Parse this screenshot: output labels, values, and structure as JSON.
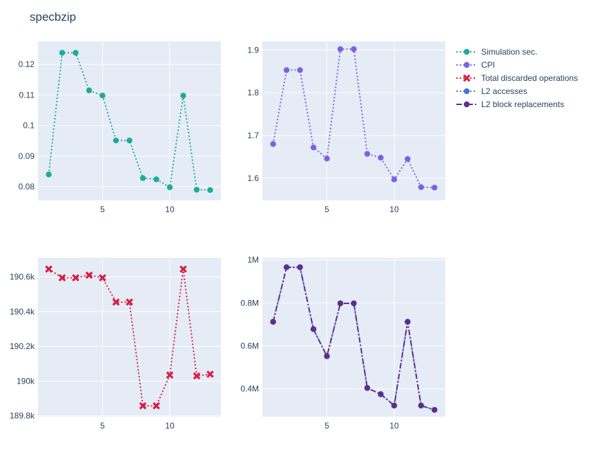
{
  "chart_data": {
    "type": "line",
    "title": "specbzip",
    "x": [
      1,
      2,
      3,
      4,
      5,
      6,
      7,
      8,
      9,
      10,
      11,
      12,
      13
    ],
    "subplots": [
      {
        "series": [
          {
            "name": "Simulation sec.",
            "color": "#20aa9c",
            "dash": "dot",
            "marker": "circle",
            "values": [
              0.084,
              0.1238,
              0.1238,
              0.1115,
              0.1098,
              0.0951,
              0.0951,
              0.0828,
              0.0824,
              0.0798,
              0.1098,
              0.079,
              0.0789
            ]
          }
        ],
        "xlim": [
          0.2,
          13.8
        ],
        "ylim": [
          0.0755,
          0.1275
        ],
        "xticks": [
          5,
          10
        ],
        "xtick_labels": [
          "5",
          "10"
        ],
        "yticks": [
          0.08,
          0.09,
          0.1,
          0.11,
          0.12
        ],
        "ytick_labels": [
          "0.08",
          "0.09",
          "0.1",
          "0.11",
          "0.12"
        ]
      },
      {
        "series": [
          {
            "name": "CPI",
            "color": "#7b62e0",
            "dash": "dot",
            "marker": "circle",
            "values": [
              1.68,
              1.853,
              1.853,
              1.672,
              1.646,
              1.902,
              1.902,
              1.657,
              1.648,
              1.597,
              1.645,
              1.579,
              1.578
            ]
          }
        ],
        "xlim": [
          0.2,
          13.8
        ],
        "ylim": [
          1.548,
          1.92
        ],
        "xticks": [
          5,
          10
        ],
        "xtick_labels": [
          "5",
          "10"
        ],
        "yticks": [
          1.6,
          1.7,
          1.8,
          1.9
        ],
        "ytick_labels": [
          "1.6",
          "1.7",
          "1.8",
          "1.9"
        ]
      },
      {
        "series": [
          {
            "name": "Total discarded operations",
            "color": "#d81e44",
            "dash": "dot",
            "marker": "x",
            "values": [
              190645,
              190595,
              190595,
              190610,
              190595,
              190455,
              190455,
              189858,
              189858,
              190035,
              190645,
              190030,
              190040
            ]
          }
        ],
        "xlim": [
          0.2,
          13.8
        ],
        "ylim": [
          189795,
          190710
        ],
        "xticks": [
          5,
          10
        ],
        "xtick_labels": [
          "5",
          "10"
        ],
        "yticks": [
          189800,
          190000,
          190200,
          190400,
          190600
        ],
        "ytick_labels": [
          "189.8k",
          "190k",
          "190.2k",
          "190.4k",
          "190.6k"
        ]
      },
      {
        "series": [
          {
            "name": "L2 accesses",
            "color": "#4a72d4",
            "dash": "dot",
            "marker": "circle",
            "values": [
              712000,
              966000,
              966000,
              678000,
              552000,
              798000,
              798000,
              404000,
              375000,
              322000,
              712000,
              322000,
              302000
            ]
          },
          {
            "name": "L2 block replacements",
            "color": "#5e2e8c",
            "dash": "dashdot",
            "marker": "circle",
            "values": [
              712000,
              966000,
              966000,
              678000,
              552000,
              798000,
              798000,
              404000,
              375000,
              322000,
              712000,
              322000,
              302000
            ]
          }
        ],
        "xlim": [
          0.2,
          13.8
        ],
        "ylim": [
          270000,
          1010000
        ],
        "xticks": [
          5,
          10
        ],
        "xtick_labels": [
          "5",
          "10"
        ],
        "yticks": [
          400000,
          600000,
          800000,
          1000000
        ],
        "ytick_labels": [
          "0.4M",
          "0.6M",
          "0.8M",
          "1M"
        ]
      }
    ],
    "legend": {
      "position": "top-right",
      "entries": [
        {
          "name": "Simulation sec.",
          "color": "#20aa9c",
          "dash": "dot",
          "marker": "circle"
        },
        {
          "name": "CPI",
          "color": "#7b62e0",
          "dash": "dot",
          "marker": "circle"
        },
        {
          "name": "Total discarded operations",
          "color": "#d81e44",
          "dash": "dot",
          "marker": "x"
        },
        {
          "name": "L2 accesses",
          "color": "#4a72d4",
          "dash": "dot",
          "marker": "circle"
        },
        {
          "name": "L2 block replacements",
          "color": "#5e2e8c",
          "dash": "dashdot",
          "marker": "circle"
        }
      ]
    },
    "plot_bg": "#e5ecf6",
    "grid_color": "#ffffff"
  }
}
